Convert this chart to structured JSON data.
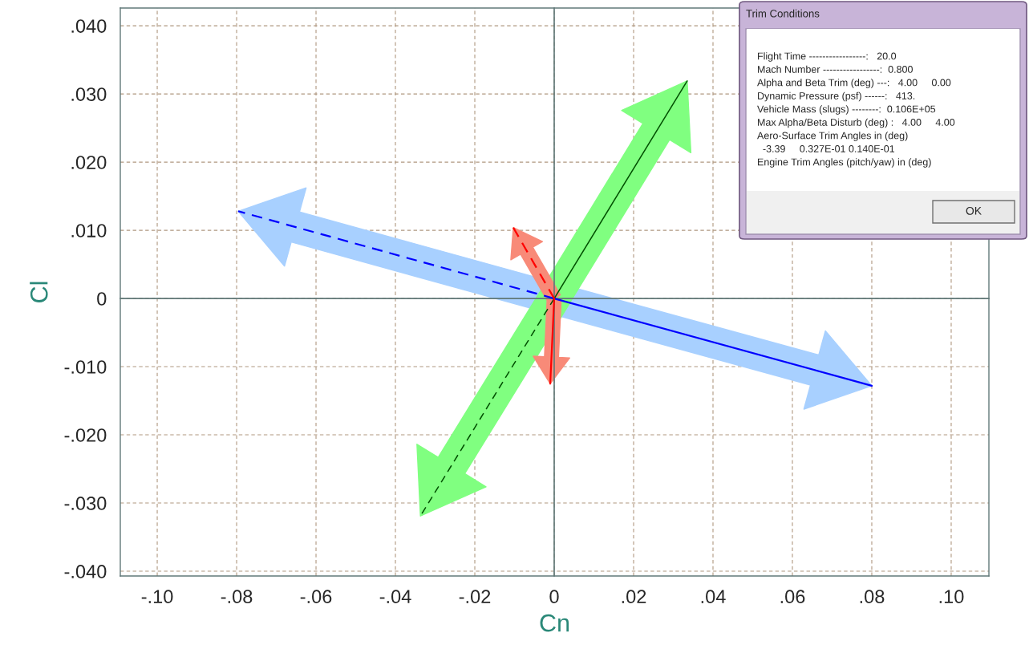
{
  "chart_data": {
    "type": "line",
    "xlabel": "Cn",
    "ylabel": "Cl",
    "xlim": [
      -0.1093,
      0.1095
    ],
    "ylim": [
      -0.0407,
      0.0426
    ],
    "xticks": [
      {
        "value": -0.1,
        "label": "-.10"
      },
      {
        "value": -0.08,
        "label": "-.08"
      },
      {
        "value": -0.06,
        "label": "-.06"
      },
      {
        "value": -0.04,
        "label": "-.04"
      },
      {
        "value": -0.02,
        "label": "-.02"
      },
      0,
      {
        "value": 0.02,
        "label": ".02"
      },
      {
        "value": 0.04,
        "label": ".04"
      },
      {
        "value": 0.06,
        "label": ".06"
      },
      {
        "value": 0.08,
        "label": ".08"
      },
      {
        "value": 0.1,
        "label": ".10"
      }
    ],
    "yticks": [
      {
        "value": -0.04,
        "label": "-.040"
      },
      {
        "value": -0.03,
        "label": "-.030"
      },
      {
        "value": -0.02,
        "label": "-.020"
      },
      {
        "value": -0.01,
        "label": "-.010"
      },
      0,
      {
        "value": 0.01,
        "label": ".010"
      },
      {
        "value": 0.02,
        "label": ".020"
      },
      {
        "value": 0.03,
        "label": ".030"
      },
      {
        "value": 0.04,
        "label": ".040"
      }
    ],
    "grid": true,
    "legend": false,
    "marker": "none",
    "series": [
      {
        "color": "#0000ff",
        "line_style": "solid",
        "x": [
          0,
          0.08
        ],
        "values": [
          0,
          -0.0128
        ]
      },
      {
        "color": "#0000ff",
        "line_style": "dashed",
        "x": [
          0,
          -0.0796
        ],
        "values": [
          0,
          0.0128
        ]
      },
      {
        "color": "#005000",
        "line_style": "solid",
        "x": [
          0,
          0.0335
        ],
        "values": [
          0,
          0.0319
        ]
      },
      {
        "color": "#005000",
        "line_style": "dashed",
        "x": [
          0,
          -0.0337
        ],
        "values": [
          0,
          -0.0319
        ]
      },
      {
        "color": "#ff0000",
        "line_style": "dashed",
        "x": [
          0,
          -0.0103
        ],
        "values": [
          0,
          0.0104
        ]
      },
      {
        "color": "#ff0000",
        "line_style": "solid",
        "x": [
          0,
          -0.001
        ],
        "values": [
          0,
          -0.0125
        ]
      }
    ],
    "annotations": [
      "Trim Conditions",
      "Flight Time -----------------:   20.0",
      "Mach Number -----------------:  0.800",
      "Alpha and Beta Trim (deg) ---:   4.00     0.00",
      "Dynamic Pressure (psf) ------:   413.",
      "Vehicle Mass (slugs) --------:  0.106E+05",
      "Max Alpha/Beta Disturb (deg) :   4.00     4.00",
      "Aero-Surface Trim Angles in (deg)",
      "  -3.39     0.327E-01 0.140E-01",
      "Engine Trim Angles (pitch/yaw) in (deg)",
      "OK"
    ]
  }
}
